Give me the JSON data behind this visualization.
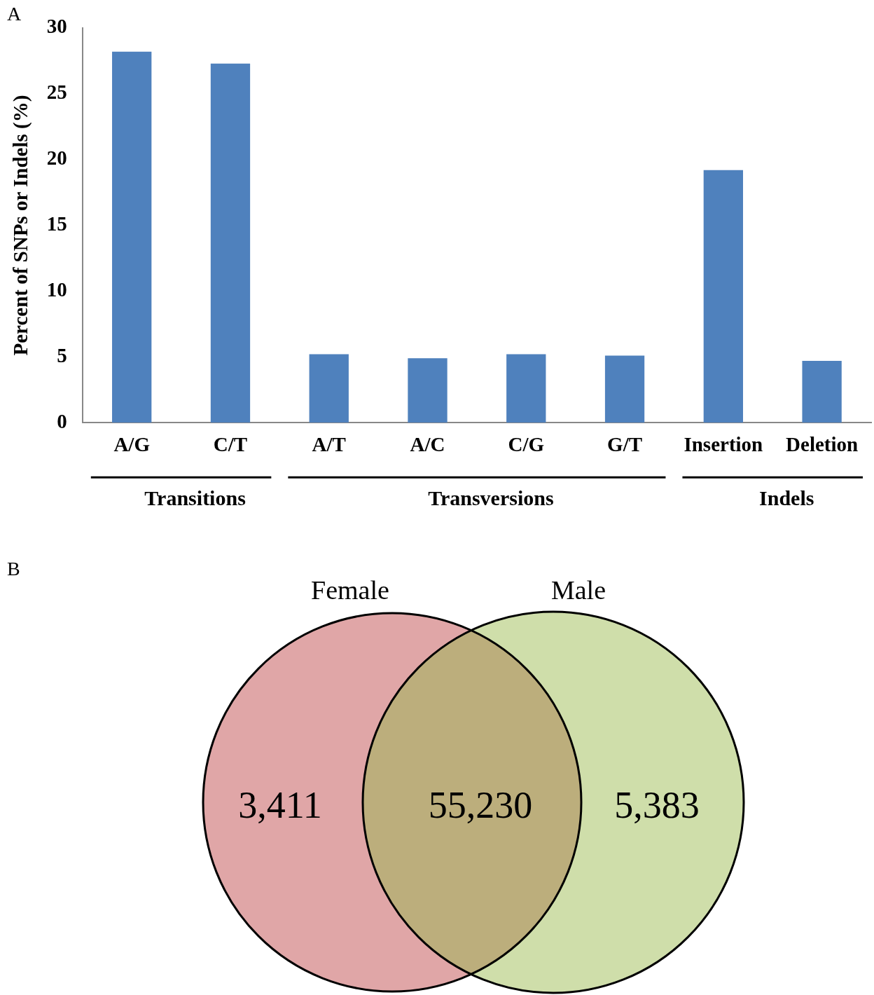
{
  "chart_data": [
    {
      "type": "bar",
      "title": "A",
      "ylabel": "Percent of SNPs or Indels (%)",
      "categories": [
        "A/G",
        "C/T",
        "A/T",
        "A/C",
        "C/G",
        "G/T",
        "Insertion",
        "Deletion"
      ],
      "values": [
        28.2,
        27.3,
        5.2,
        4.9,
        5.2,
        5.1,
        19.2,
        4.7
      ],
      "color": "#4f81bd",
      "ylim": [
        0,
        30
      ],
      "yticks": [
        0,
        5,
        10,
        15,
        20,
        25,
        30
      ],
      "grid": false,
      "legend": false,
      "annotations": [
        "Transitions",
        "Transversions",
        "Indels"
      ]
    },
    {
      "type": "other",
      "title": "B",
      "categories": [
        "Female",
        null,
        "Male"
      ],
      "values": [
        3411,
        55230,
        5383
      ],
      "value_labels": [
        "3,411",
        "55,230",
        "5,383"
      ],
      "colors": [
        "#e0a6a7",
        "#bcae7c",
        "#cfdeaa"
      ]
    }
  ]
}
